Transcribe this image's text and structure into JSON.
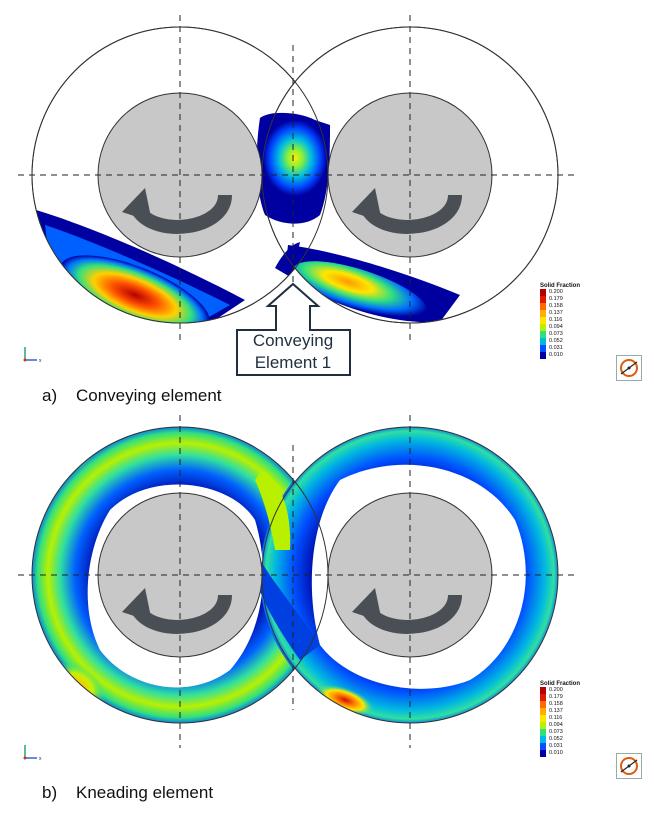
{
  "panels": [
    {
      "caption_letter": "a)",
      "caption_text": "Conveying element"
    },
    {
      "caption_letter": "b)",
      "caption_text": "Kneading element"
    }
  ],
  "callout": {
    "line1": "Conveying",
    "line2": "Element 1"
  },
  "legend": {
    "title": "Solid Fraction",
    "values": [
      "0.200",
      "0.179",
      "0.158",
      "0.137",
      "0.116",
      "0.094",
      "0.073",
      "0.052",
      "0.031",
      "0.010"
    ],
    "colors": [
      "#b40000",
      "#e01a00",
      "#ff6a00",
      "#ffae00",
      "#ffe600",
      "#b8f000",
      "#30e080",
      "#00b8e0",
      "#0050ff",
      "#0000a0"
    ]
  },
  "axis_triad": {
    "x_label": "x"
  },
  "colors": {
    "rotor_fill": "#c8c8c8",
    "arrow_fill": "#4a4f55",
    "outline": "#333333"
  }
}
